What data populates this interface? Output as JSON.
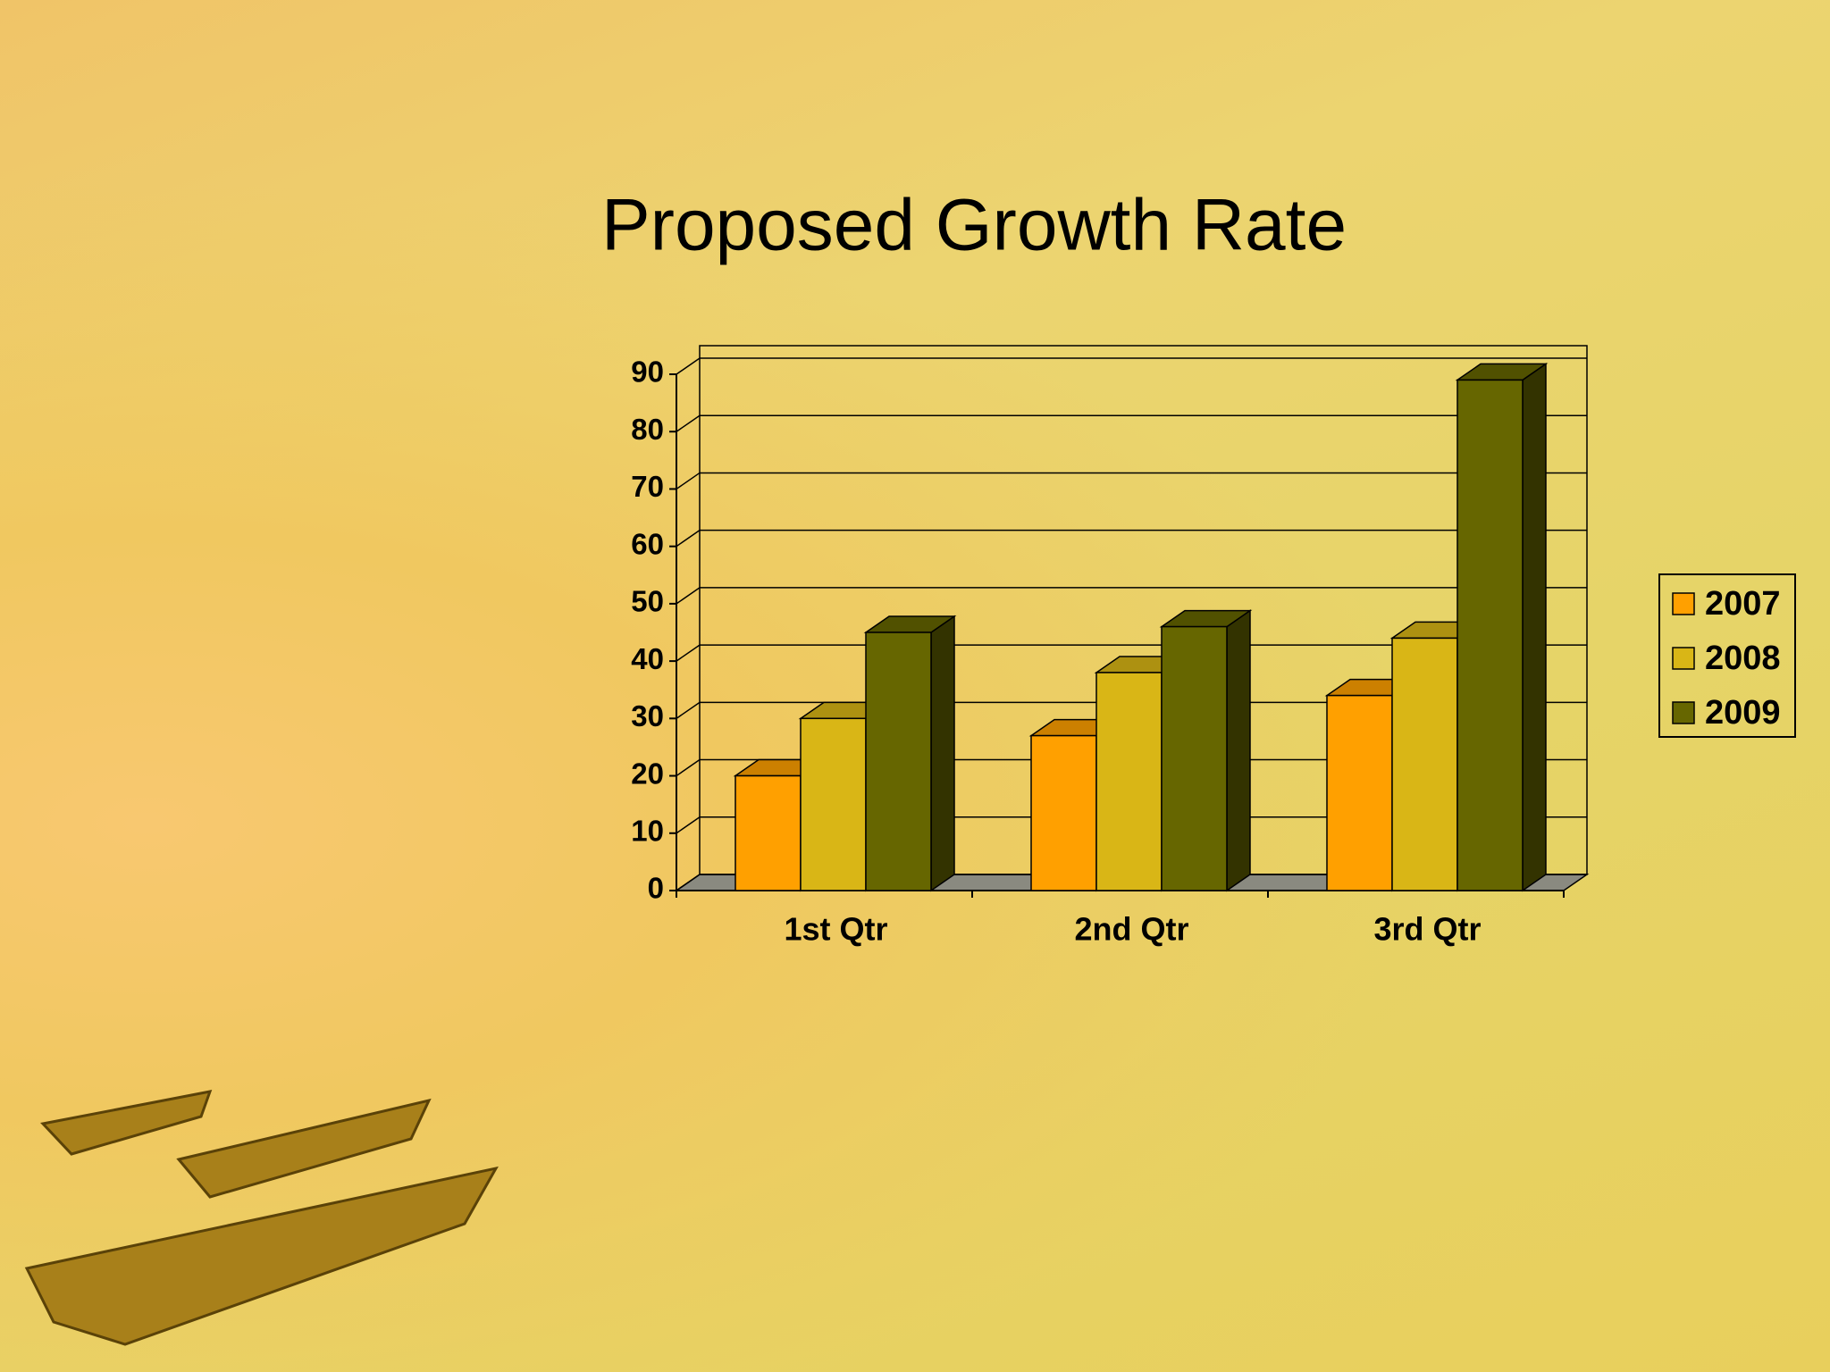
{
  "chart_data": {
    "type": "bar3d",
    "title": "Proposed Growth Rate",
    "categories": [
      "1st Qtr",
      "2nd Qtr",
      "3rd Qtr"
    ],
    "series": [
      {
        "name": "2007",
        "color": "#ffa000",
        "values": [
          20,
          27,
          34
        ]
      },
      {
        "name": "2008",
        "color": "#d9b616",
        "values": [
          30,
          38,
          44
        ]
      },
      {
        "name": "2009",
        "color": "#666600",
        "values": [
          45,
          46,
          89
        ]
      }
    ],
    "ylim": [
      0,
      90
    ],
    "yticks": [
      0,
      10,
      20,
      30,
      40,
      50,
      60,
      70,
      80,
      90
    ],
    "grid": true,
    "legend": "right"
  }
}
